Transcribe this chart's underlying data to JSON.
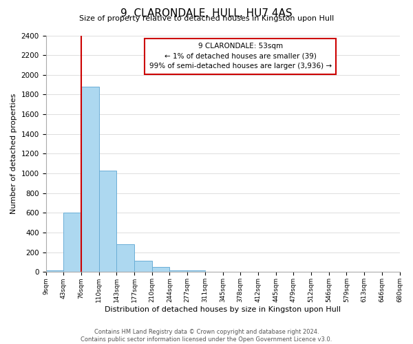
{
  "title": "9, CLARONDALE, HULL, HU7 4AS",
  "subtitle": "Size of property relative to detached houses in Kingston upon Hull",
  "xlabel": "Distribution of detached houses by size in Kingston upon Hull",
  "ylabel": "Number of detached properties",
  "bar_values": [
    20,
    600,
    1880,
    1030,
    280,
    115,
    50,
    20,
    15,
    5,
    0,
    0,
    0,
    0,
    0,
    0,
    0,
    0,
    0,
    0
  ],
  "bin_labels": [
    "9sqm",
    "43sqm",
    "76sqm",
    "110sqm",
    "143sqm",
    "177sqm",
    "210sqm",
    "244sqm",
    "277sqm",
    "311sqm",
    "345sqm",
    "378sqm",
    "412sqm",
    "445sqm",
    "479sqm",
    "512sqm",
    "546sqm",
    "579sqm",
    "613sqm",
    "646sqm",
    "680sqm"
  ],
  "bar_color": "#add8f0",
  "bar_edge_color": "#6aaed6",
  "vline_color": "#cc0000",
  "vline_position": 1.5,
  "annotation_title": "9 CLARONDALE: 53sqm",
  "annotation_line1": "← 1% of detached houses are smaller (39)",
  "annotation_line2": "99% of semi-detached houses are larger (3,936) →",
  "annotation_box_color": "#ffffff",
  "annotation_box_edge": "#cc0000",
  "ylim": [
    0,
    2400
  ],
  "yticks": [
    0,
    200,
    400,
    600,
    800,
    1000,
    1200,
    1400,
    1600,
    1800,
    2000,
    2200,
    2400
  ],
  "footer_line1": "Contains HM Land Registry data © Crown copyright and database right 2024.",
  "footer_line2": "Contains public sector information licensed under the Open Government Licence v3.0.",
  "bg_color": "#ffffff",
  "grid_color": "#dddddd"
}
